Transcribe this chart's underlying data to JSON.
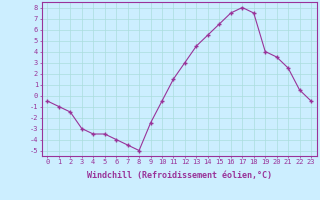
{
  "x": [
    0,
    1,
    2,
    3,
    4,
    5,
    6,
    7,
    8,
    9,
    10,
    11,
    12,
    13,
    14,
    15,
    16,
    17,
    18,
    19,
    20,
    21,
    22,
    23
  ],
  "y": [
    -0.5,
    -1.0,
    -1.5,
    -3.0,
    -3.5,
    -3.5,
    -4.0,
    -4.5,
    -5.0,
    -2.5,
    -0.5,
    1.5,
    3.0,
    4.5,
    5.5,
    6.5,
    7.5,
    8.0,
    7.5,
    4.0,
    3.5,
    2.5,
    0.5,
    -0.5
  ],
  "line_color": "#993399",
  "marker": "+",
  "marker_color": "#993399",
  "bg_color": "#cceeff",
  "grid_color": "#aadddd",
  "xlabel": "Windchill (Refroidissement éolien,°C)",
  "xlabel_color": "#993399",
  "tick_color": "#993399",
  "xlim": [
    -0.5,
    23.5
  ],
  "ylim": [
    -5.5,
    8.5
  ],
  "yticks": [
    -5,
    -4,
    -3,
    -2,
    -1,
    0,
    1,
    2,
    3,
    4,
    5,
    6,
    7,
    8
  ],
  "xticks": [
    0,
    1,
    2,
    3,
    4,
    5,
    6,
    7,
    8,
    9,
    10,
    11,
    12,
    13,
    14,
    15,
    16,
    17,
    18,
    19,
    20,
    21,
    22,
    23
  ],
  "font_size_ticks": 5,
  "font_size_xlabel": 6
}
